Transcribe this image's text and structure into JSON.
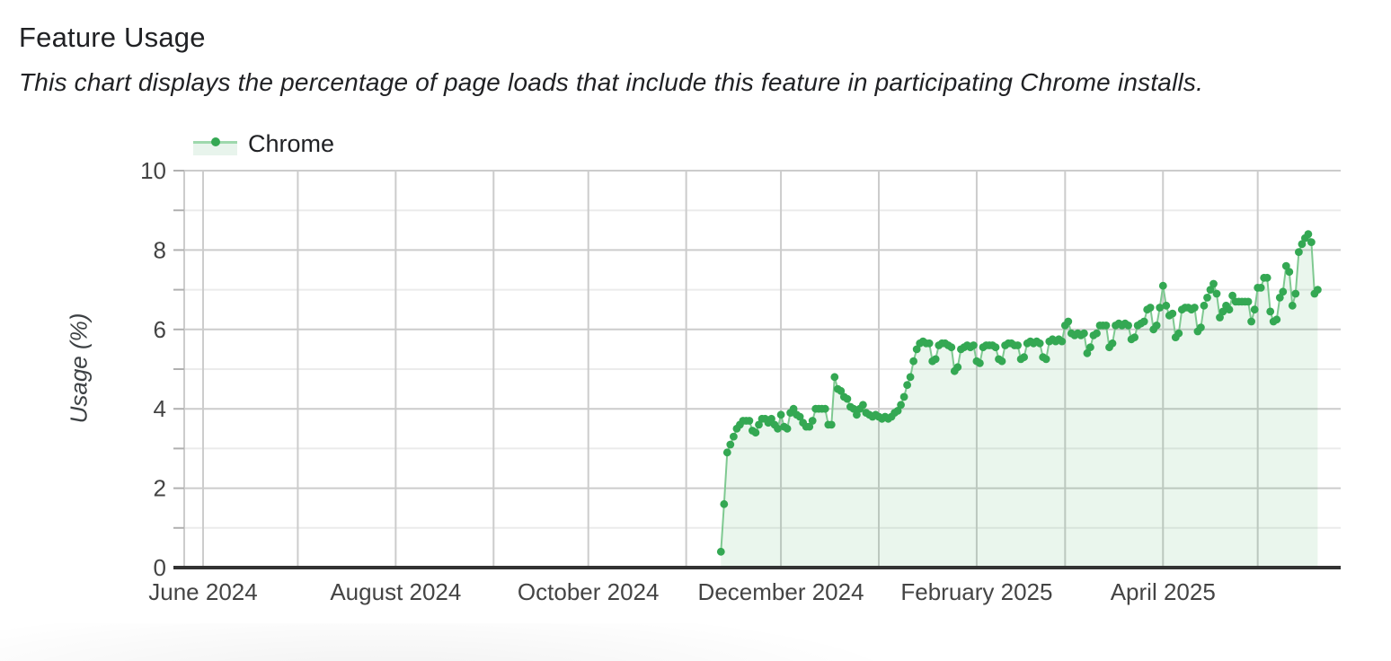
{
  "page": {
    "title": "Feature Usage",
    "subtitle": "This chart displays the percentage of page loads that include this feature in participating Chrome installs."
  },
  "colors": {
    "series_green": "#34a853",
    "series_line_light": "#7fc991",
    "area_fill_tint": "#e9f4ec",
    "legend_swatch_line": "#9ed8ac",
    "major_gridline": "#cccccc",
    "minor_gridline": "#ebebeb",
    "baseline": "#333333",
    "tick_text": "#444444",
    "title_text": "#202124"
  },
  "chart_data": {
    "type": "area",
    "title": "Feature Usage",
    "xlabel": "",
    "ylabel": "Usage (%)",
    "legend_position": "top-left",
    "grid": "on",
    "legend": [
      {
        "label": "Chrome",
        "color": "#34a853"
      }
    ],
    "x_axis": {
      "type": "time",
      "visible_range": [
        "2024-05-26",
        "2025-05-27"
      ],
      "gridlines": "monthly",
      "tick_labels": [
        "June 2024",
        "August 2024",
        "October 2024",
        "December 2024",
        "February 2025",
        "April 2025"
      ]
    },
    "y_axis": {
      "min": 0,
      "max": 10,
      "major_ticks": [
        0,
        2,
        4,
        6,
        8,
        10
      ],
      "minor_tick_step": 1
    },
    "series": [
      {
        "name": "Chrome",
        "color": "#34a853",
        "cadence": "daily",
        "start_date": "2024-11-12",
        "values_pct": [
          0.4,
          1.6,
          2.9,
          3.1,
          3.3,
          3.5,
          3.6,
          3.7,
          3.7,
          3.7,
          3.45,
          3.4,
          3.6,
          3.75,
          3.75,
          3.65,
          3.75,
          3.6,
          3.5,
          3.85,
          3.55,
          3.5,
          3.9,
          4.0,
          3.85,
          3.8,
          3.65,
          3.55,
          3.55,
          3.7,
          4.0,
          4.0,
          4.0,
          4.0,
          3.6,
          3.6,
          4.8,
          4.5,
          4.45,
          4.3,
          4.25,
          4.05,
          4.0,
          3.85,
          4.0,
          4.1,
          3.9,
          3.85,
          3.8,
          3.85,
          3.8,
          3.75,
          3.8,
          3.75,
          3.8,
          3.9,
          3.95,
          4.1,
          4.3,
          4.6,
          4.8,
          5.2,
          5.5,
          5.65,
          5.7,
          5.65,
          5.65,
          5.2,
          5.25,
          5.6,
          5.65,
          5.65,
          5.6,
          5.55,
          4.95,
          5.05,
          5.5,
          5.55,
          5.6,
          5.55,
          5.6,
          5.2,
          5.15,
          5.55,
          5.6,
          5.6,
          5.6,
          5.55,
          5.25,
          5.2,
          5.6,
          5.65,
          5.65,
          5.6,
          5.6,
          5.25,
          5.3,
          5.65,
          5.7,
          5.65,
          5.7,
          5.65,
          5.3,
          5.25,
          5.7,
          5.75,
          5.7,
          5.75,
          5.7,
          6.1,
          6.2,
          5.9,
          5.85,
          5.9,
          5.85,
          5.9,
          5.4,
          5.55,
          5.85,
          5.9,
          6.1,
          6.1,
          6.1,
          5.55,
          5.65,
          6.1,
          6.15,
          6.1,
          6.15,
          6.1,
          5.75,
          5.8,
          6.1,
          6.15,
          6.2,
          6.5,
          6.55,
          6.0,
          6.1,
          6.55,
          7.1,
          6.6,
          6.35,
          6.4,
          5.8,
          5.9,
          6.5,
          6.55,
          6.55,
          6.5,
          6.55,
          5.95,
          6.05,
          6.6,
          6.8,
          7.0,
          7.15,
          6.9,
          6.3,
          6.45,
          6.6,
          6.5,
          6.85,
          6.7,
          6.7,
          6.7,
          6.7,
          6.7,
          6.2,
          6.5,
          7.05,
          7.05,
          7.3,
          7.3,
          6.45,
          6.2,
          6.25,
          6.8,
          6.95,
          7.6,
          7.45,
          6.6,
          6.9,
          7.95,
          8.15,
          8.3,
          8.4,
          8.2,
          6.9,
          7.0
        ]
      }
    ]
  }
}
